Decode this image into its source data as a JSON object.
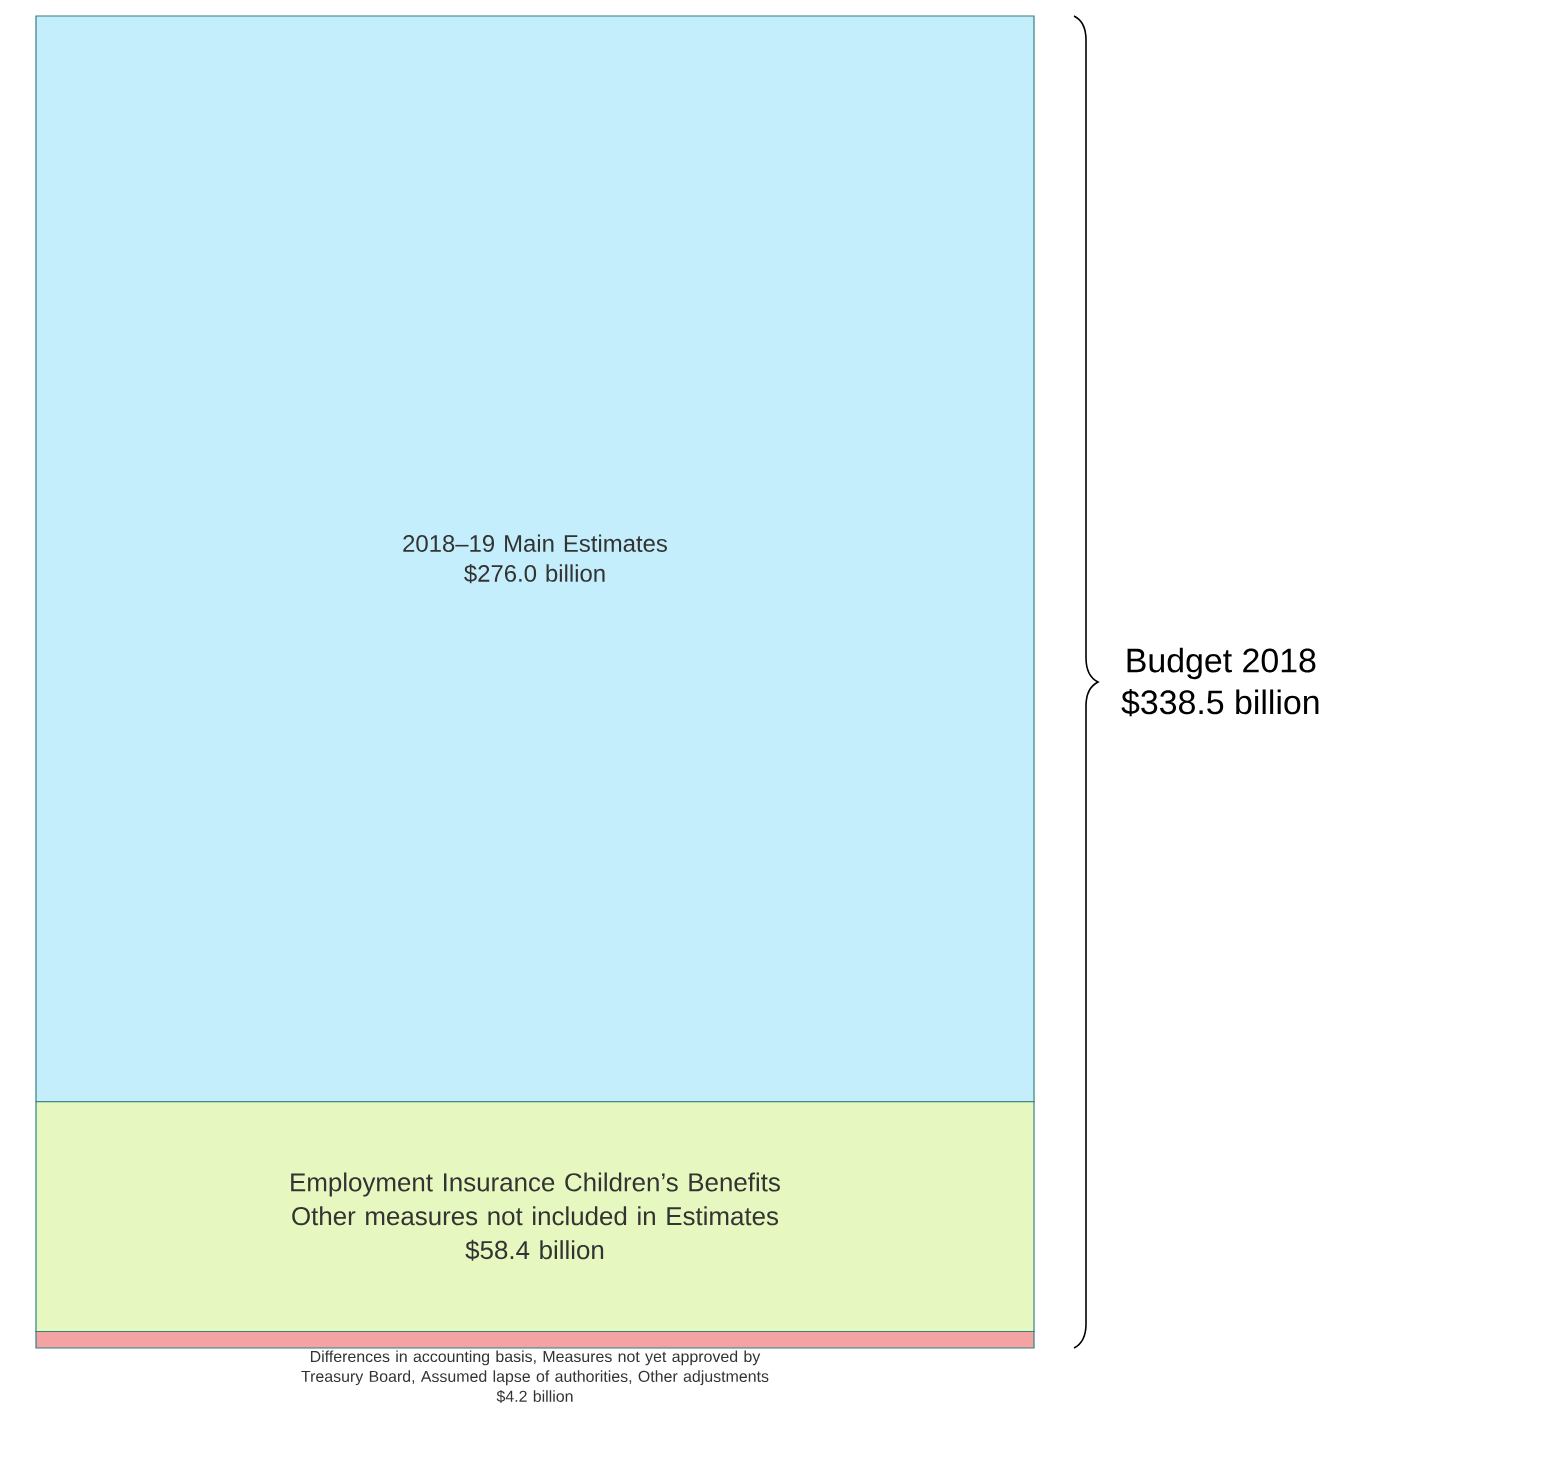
{
  "chart_data": {
    "type": "bar",
    "stacked": true,
    "categories": [
      null
    ],
    "series": [
      {
        "name": "Differences in accounting basis, Measures not yet approved by Treasury Board, Assumed lapse of authorities, Other adjustments",
        "color": "#f4a3a3",
        "values": [
          4.2
        ],
        "value_labels": [
          "$4.2 billion"
        ]
      },
      {
        "name": "Employment Insurance Children’s Benefits Other measures not included in Estimates",
        "color": "#e6f8bf",
        "values": [
          58.4
        ],
        "value_labels": [
          "$58.4 billion"
        ]
      },
      {
        "name": "2018–19 Main Estimates",
        "color": "#c4eefb",
        "values": [
          276.0
        ],
        "value_labels": [
          "$276.0 billion"
        ]
      }
    ],
    "totals": [
      "$338.5 billion"
    ],
    "annotations": [
      "Budget 2018"
    ]
  }
}
